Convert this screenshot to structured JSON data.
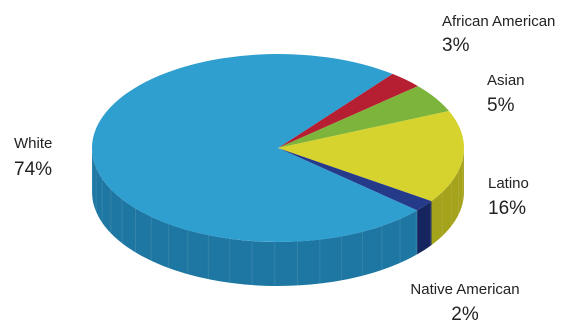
{
  "chart_data": {
    "type": "pie",
    "style": "3d",
    "title": "",
    "slices": [
      {
        "label": "African American",
        "pct_text": "3%",
        "value": 3,
        "color": "#b61f32",
        "side_color": "#86131f"
      },
      {
        "label": "Asian",
        "pct_text": "5%",
        "value": 5,
        "color": "#7db43c",
        "side_color": "#5a8a26"
      },
      {
        "label": "Latino",
        "pct_text": "16%",
        "value": 16,
        "color": "#d6d22e",
        "side_color": "#a5a21b"
      },
      {
        "label": "Native American",
        "pct_text": "2%",
        "value": 2,
        "color": "#263a8a",
        "side_color": "#16255e"
      },
      {
        "label": "White",
        "pct_text": "74%",
        "value": 74,
        "color": "#2f9fd0",
        "side_color": "#1d77a2"
      }
    ]
  }
}
